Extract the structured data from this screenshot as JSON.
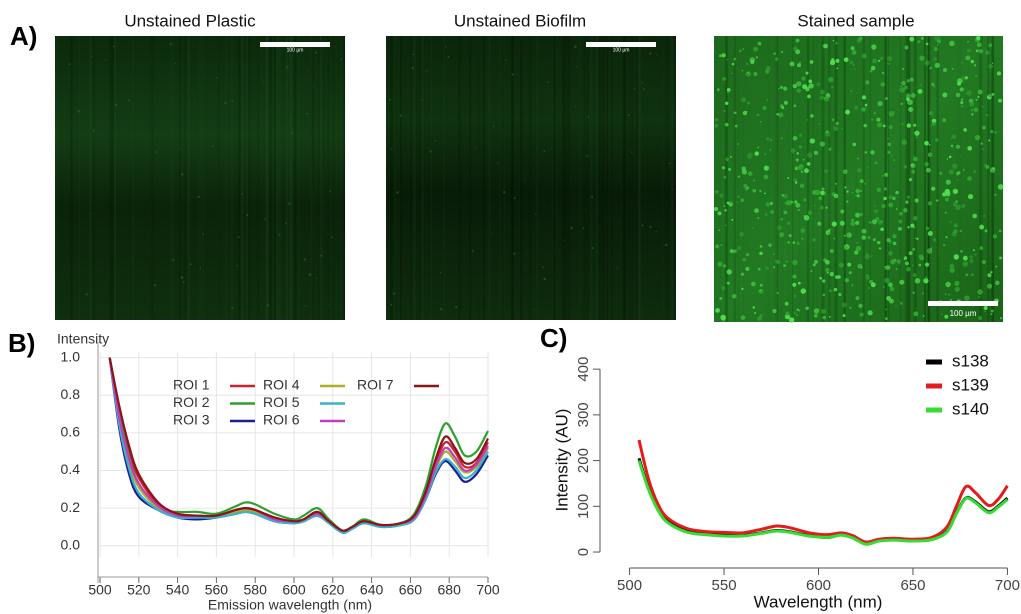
{
  "figure": {
    "labels": [
      "A)",
      "B)",
      "C)"
    ],
    "images": [
      {
        "title": "Unstained Plastic",
        "scale_bar": "100 µm"
      },
      {
        "title": "Unstained Biofilm",
        "scale_bar": "100 µm"
      },
      {
        "title": "Stained sample",
        "scale_bar": "100 µm"
      }
    ]
  },
  "chart_data": [
    {
      "type": "line",
      "ylabel": "Intensity",
      "xlabel": "Emission wavelength (nm)",
      "x": [
        505,
        510,
        515,
        520,
        530,
        540,
        550,
        560,
        570,
        575,
        580,
        590,
        600,
        605,
        612,
        618,
        625,
        630,
        636,
        645,
        655,
        662,
        668,
        673,
        678,
        683,
        688,
        694,
        700
      ],
      "xlim": [
        500,
        700
      ],
      "xticks": [
        500,
        520,
        540,
        560,
        580,
        600,
        620,
        640,
        660,
        680,
        700
      ],
      "ylim": [
        -0.06,
        1.03
      ],
      "yticks": [
        {
          "value": 0,
          "label": "0.0"
        },
        0.2,
        0.4,
        0.6,
        0.8,
        {
          "value": 1,
          "label": "1.0"
        }
      ],
      "grid": true,
      "series": [
        {
          "name": "ROI 1",
          "color": "#c8242c",
          "values": [
            1.0,
            0.72,
            0.5,
            0.36,
            0.22,
            0.17,
            0.16,
            0.16,
            0.19,
            0.2,
            0.19,
            0.15,
            0.13,
            0.14,
            0.18,
            0.13,
            0.08,
            0.1,
            0.13,
            0.11,
            0.12,
            0.16,
            0.28,
            0.44,
            0.55,
            0.5,
            0.42,
            0.44,
            0.55
          ]
        },
        {
          "name": "ROI 2",
          "color": "#2ca02c",
          "values": [
            1.0,
            0.7,
            0.47,
            0.33,
            0.2,
            0.18,
            0.18,
            0.17,
            0.21,
            0.23,
            0.22,
            0.17,
            0.14,
            0.16,
            0.2,
            0.14,
            0.08,
            0.1,
            0.14,
            0.11,
            0.12,
            0.17,
            0.32,
            0.52,
            0.65,
            0.58,
            0.48,
            0.5,
            0.61
          ]
        },
        {
          "name": "ROI 3",
          "color": "#1c1c96",
          "values": [
            1.0,
            0.62,
            0.38,
            0.26,
            0.19,
            0.15,
            0.14,
            0.15,
            0.17,
            0.18,
            0.17,
            0.13,
            0.12,
            0.13,
            0.16,
            0.12,
            0.07,
            0.09,
            0.12,
            0.1,
            0.11,
            0.14,
            0.25,
            0.38,
            0.45,
            0.4,
            0.34,
            0.38,
            0.48
          ]
        },
        {
          "name": "ROI 4",
          "color": "#b0ae22",
          "values": [
            1.0,
            0.66,
            0.44,
            0.31,
            0.2,
            0.16,
            0.15,
            0.16,
            0.18,
            0.19,
            0.18,
            0.14,
            0.13,
            0.14,
            0.17,
            0.12,
            0.08,
            0.1,
            0.13,
            0.1,
            0.12,
            0.15,
            0.27,
            0.41,
            0.5,
            0.45,
            0.39,
            0.42,
            0.52
          ]
        },
        {
          "name": "ROI 5",
          "color": "#38b4c8",
          "values": [
            1.0,
            0.64,
            0.41,
            0.28,
            0.19,
            0.15,
            0.15,
            0.15,
            0.17,
            0.18,
            0.17,
            0.13,
            0.12,
            0.13,
            0.16,
            0.12,
            0.07,
            0.09,
            0.12,
            0.1,
            0.11,
            0.14,
            0.25,
            0.39,
            0.46,
            0.42,
            0.36,
            0.4,
            0.5
          ]
        },
        {
          "name": "ROI 6",
          "color": "#c03ec0",
          "values": [
            1.0,
            0.68,
            0.46,
            0.33,
            0.21,
            0.16,
            0.16,
            0.16,
            0.19,
            0.2,
            0.19,
            0.14,
            0.13,
            0.14,
            0.17,
            0.13,
            0.08,
            0.1,
            0.13,
            0.11,
            0.12,
            0.15,
            0.27,
            0.42,
            0.52,
            0.47,
            0.4,
            0.43,
            0.53
          ]
        },
        {
          "name": "ROI 7",
          "color": "#8c1418",
          "values": [
            1.0,
            0.74,
            0.53,
            0.38,
            0.23,
            0.17,
            0.16,
            0.16,
            0.19,
            0.2,
            0.19,
            0.15,
            0.13,
            0.14,
            0.18,
            0.13,
            0.08,
            0.1,
            0.13,
            0.11,
            0.12,
            0.16,
            0.29,
            0.46,
            0.58,
            0.52,
            0.44,
            0.46,
            0.57
          ]
        }
      ]
    },
    {
      "type": "line",
      "ylabel": "Intensity (AU)",
      "xlabel": "Wavelength (nm)",
      "x": [
        505,
        510,
        515,
        520,
        530,
        540,
        550,
        560,
        570,
        578,
        585,
        595,
        605,
        612,
        618,
        625,
        632,
        640,
        650,
        660,
        668,
        673,
        678,
        683,
        690,
        695,
        700
      ],
      "xlim": [
        487,
        704
      ],
      "xticks": [
        500,
        550,
        600,
        650,
        700
      ],
      "ylim": [
        -10,
        420
      ],
      "yticks": [
        0,
        100,
        200,
        300,
        400
      ],
      "series": [
        {
          "name": "s138",
          "color": "#000000",
          "values": [
            205,
            140,
            95,
            68,
            46,
            40,
            37,
            36,
            42,
            47,
            44,
            36,
            32,
            38,
            32,
            18,
            25,
            27,
            25,
            28,
            45,
            85,
            118,
            110,
            88,
            100,
            118
          ]
        },
        {
          "name": "s139",
          "color": "#e41a1c",
          "values": [
            245,
            160,
            105,
            75,
            52,
            45,
            43,
            42,
            50,
            57,
            53,
            42,
            38,
            42,
            36,
            22,
            28,
            30,
            28,
            32,
            55,
            100,
            143,
            130,
            102,
            115,
            145
          ]
        },
        {
          "name": "s140",
          "color": "#33dd33",
          "values": [
            200,
            137,
            92,
            65,
            44,
            38,
            35,
            35,
            41,
            46,
            43,
            35,
            32,
            37,
            31,
            17,
            24,
            26,
            24,
            27,
            44,
            84,
            117,
            108,
            86,
            98,
            115
          ]
        }
      ]
    }
  ]
}
